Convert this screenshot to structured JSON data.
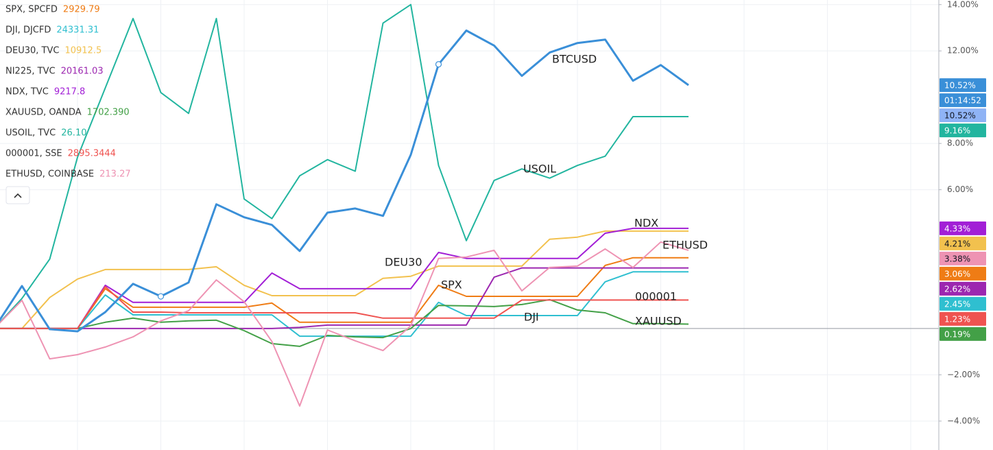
{
  "chart_data": {
    "type": "line",
    "categories": [
      null,
      null,
      null,
      null,
      null,
      null,
      null,
      null,
      null,
      null,
      null,
      null,
      null,
      null,
      null,
      null,
      null,
      null,
      null,
      null,
      null,
      null,
      null,
      null,
      null,
      null
    ],
    "ylim": [
      -5.25,
      14.2
    ],
    "yticks": [
      {
        "value": 14,
        "label": "14.00%"
      },
      {
        "value": 12,
        "label": "12.00%"
      },
      {
        "value": 8,
        "label": "8.00%"
      },
      {
        "value": 6,
        "label": "6.00%"
      },
      {
        "value": -2,
        "label": "−2.00%"
      },
      {
        "value": -4,
        "label": "−4.00%"
      }
    ],
    "grid": true,
    "legend": "top-left",
    "countdown": "01:14:52",
    "crosshair_tag": "10.52%",
    "series": [
      {
        "label": "BTCUSD",
        "color": "#3a8fd8",
        "width": 3,
        "last_label": "10.52%",
        "values": [
          0,
          1.84,
          -0.03,
          -0.12,
          0.71,
          1.93,
          1.39,
          1.99,
          5.37,
          4.81,
          4.48,
          3.35,
          5.01,
          5.19,
          4.87,
          7.51,
          11.42,
          12.88,
          12.23,
          10.92,
          11.93,
          12.34,
          12.49,
          10.71,
          11.39,
          10.52
        ]
      },
      {
        "legend": "SPX, SPCFD",
        "price": "2929.79",
        "label": "SPX",
        "color": "#ef7c15",
        "width": 2,
        "last_label": "3.06%",
        "values": [
          0,
          0,
          0,
          0,
          1.72,
          0.92,
          0.92,
          0.92,
          0.92,
          0.92,
          1.1,
          0.27,
          0.27,
          0.27,
          0.27,
          0.27,
          1.87,
          1.39,
          1.39,
          1.39,
          1.39,
          1.39,
          2.73,
          3.06,
          3.06,
          3.06
        ]
      },
      {
        "legend": "DJI, DJCFD",
        "price": "24331.31",
        "label": "DJI",
        "color": "#2fbfd0",
        "width": 2,
        "last_label": "2.45%",
        "values": [
          0,
          0,
          0,
          0,
          1.45,
          0.59,
          0.59,
          0.59,
          0.59,
          0.59,
          0.59,
          -0.33,
          -0.33,
          -0.33,
          -0.33,
          -0.33,
          1.13,
          0.56,
          0.56,
          0.56,
          0.56,
          0.56,
          2.02,
          2.45,
          2.45,
          2.45
        ]
      },
      {
        "legend": "DEU30, TVC",
        "price": "10912.5",
        "label": "DEU30",
        "color": "#f2c14e",
        "width": 2,
        "last_label": "4.21%",
        "values": [
          0,
          0,
          1.34,
          2.14,
          2.55,
          2.55,
          2.55,
          2.55,
          2.67,
          1.87,
          1.42,
          1.42,
          1.42,
          1.42,
          2.17,
          2.26,
          2.7,
          2.7,
          2.7,
          2.7,
          3.86,
          3.95,
          4.21,
          4.21,
          4.21,
          4.21
        ]
      },
      {
        "legend": "NI225, TVC",
        "price": "20161.03",
        "color": "#9c27b0",
        "width": 2,
        "last_label": "2.62%",
        "values": [
          0,
          0,
          0,
          0,
          0,
          0,
          0,
          0,
          0,
          0,
          0,
          0.05,
          0.15,
          0.15,
          0.15,
          0.15,
          0.15,
          0.15,
          2.22,
          2.62,
          2.62,
          2.62,
          2.62,
          2.62,
          2.62,
          2.62
        ]
      },
      {
        "legend": "NDX, TVC",
        "price": "9217.8",
        "label": "NDX",
        "color": "#a21fd6",
        "width": 2,
        "last_label": "4.33%",
        "values": [
          0,
          0,
          0,
          0,
          1.87,
          1.13,
          1.13,
          1.13,
          1.13,
          1.13,
          2.4,
          1.72,
          1.72,
          1.72,
          1.72,
          1.72,
          3.29,
          3.03,
          3.03,
          3.03,
          3.03,
          3.03,
          4.12,
          4.33,
          4.33,
          4.33
        ]
      },
      {
        "legend": "XAUUSD, OANDA",
        "price": "1702.390",
        "label": "XAUUSD",
        "color": "#43a047",
        "width": 2,
        "last_label": "0.19%",
        "values": [
          0,
          0,
          0,
          0,
          0.27,
          0.45,
          0.27,
          0.33,
          0.36,
          -0.09,
          -0.65,
          -0.77,
          -0.3,
          -0.36,
          -0.39,
          0,
          1.0,
          0.98,
          0.95,
          1.04,
          1.25,
          0.8,
          0.68,
          0.21,
          0.21,
          0.19
        ]
      },
      {
        "legend": "USOIL, TVC",
        "price": "26.10",
        "label": "USOIL",
        "color": "#22b59f",
        "width": 2,
        "last_label": "9.16%",
        "values": [
          0,
          1.3,
          3.0,
          7.4,
          10.4,
          13.4,
          10.2,
          9.3,
          13.4,
          5.6,
          4.75,
          6.6,
          7.3,
          6.8,
          13.2,
          14.0,
          7.05,
          3.8,
          6.4,
          6.9,
          6.5,
          7.05,
          7.45,
          9.16,
          9.16,
          9.16
        ]
      },
      {
        "legend": "000001, SSE",
        "price": "2895.3444",
        "label": "000001",
        "color": "#ef5350",
        "width": 2,
        "last_label": "1.23%",
        "values": [
          0,
          0,
          0,
          0,
          1.81,
          0.71,
          0.71,
          0.68,
          0.68,
          0.68,
          0.68,
          0.68,
          0.68,
          0.68,
          0.45,
          0.45,
          0.45,
          0.45,
          0.45,
          1.23,
          1.23,
          1.23,
          1.23,
          1.23,
          1.23,
          1.23
        ]
      },
      {
        "legend": "ETHUSD, COINBASE",
        "price": "213.27",
        "label": "ETHUSD",
        "color": "#ee93b3",
        "width": 2,
        "last_label": "3.38%",
        "values": [
          0,
          1.22,
          -1.31,
          -1.13,
          -0.8,
          -0.36,
          0.33,
          0.77,
          2.1,
          1.16,
          -0.56,
          -3.35,
          -0.06,
          -0.53,
          -0.95,
          0.12,
          3.03,
          3.09,
          3.38,
          1.63,
          2.64,
          2.7,
          3.44,
          2.64,
          3.74,
          3.38
        ]
      }
    ]
  }
}
